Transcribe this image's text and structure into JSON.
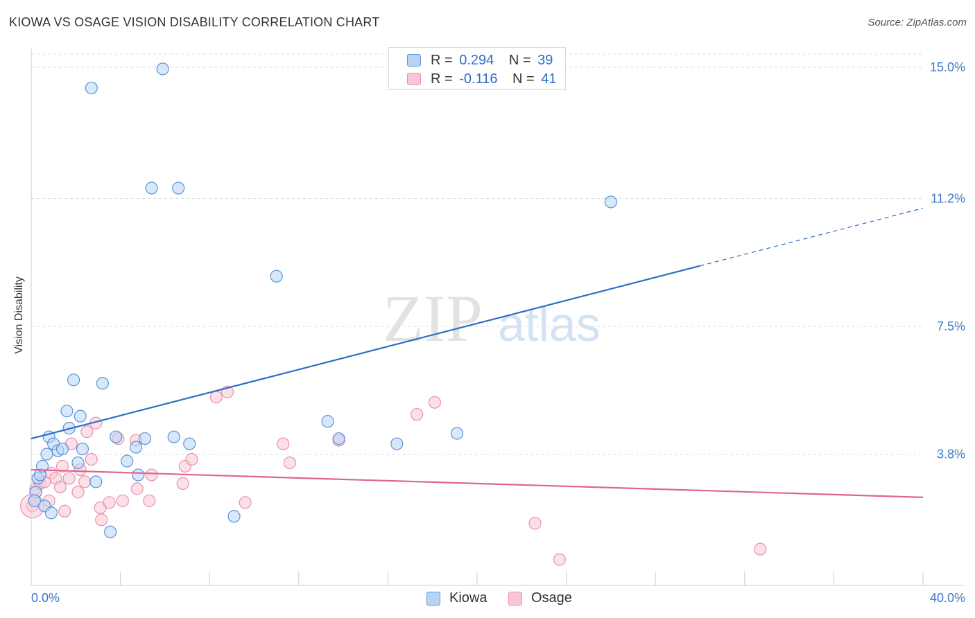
{
  "header": {
    "title": "KIOWA VS OSAGE VISION DISABILITY CORRELATION CHART",
    "source": "Source: ZipAtlas.com"
  },
  "legend": {
    "kiowa": {
      "r_label": "R =",
      "r_value": "0.294",
      "n_label": "N =",
      "n_value": "39"
    },
    "osage": {
      "r_label": "R =",
      "r_value": "-0.116",
      "n_label": "N =",
      "n_value": "41"
    }
  },
  "bottom_legend": {
    "kiowa": "Kiowa",
    "osage": "Osage"
  },
  "watermark": {
    "zip": "ZIP",
    "atlas": "atlas"
  },
  "colors": {
    "kiowa_fill": "#b8d4f5",
    "kiowa_stroke": "#5b93d6",
    "kiowa_line": "#2d6cc8",
    "osage_fill": "#f9c6d6",
    "osage_stroke": "#e891ad",
    "osage_line": "#e0648f",
    "tick_text": "#3b78c9"
  },
  "chart_data": {
    "type": "scatter",
    "title": "KIOWA VS OSAGE VISION DISABILITY CORRELATION CHART",
    "xlabel": "",
    "ylabel": "Vision Disability",
    "xlim": [
      0,
      40
    ],
    "ylim": [
      0,
      15.4
    ],
    "x_tick_labels": [
      "0.0%",
      "40.0%"
    ],
    "y_ticks": [
      3.8,
      7.5,
      11.2,
      15.0
    ],
    "y_tick_labels": [
      "3.8%",
      "7.5%",
      "11.2%",
      "15.0%"
    ],
    "grid": "horizontal dashed",
    "legend_position": "top-center",
    "series": [
      {
        "name": "Kiowa",
        "r": 0.294,
        "n": 39,
        "trend": {
          "x0": 0,
          "y0": 4.25,
          "x1": 30,
          "y1": 9.25,
          "dashed_to_x": 40,
          "dashed_to_y": 10.92
        },
        "points": [
          [
            0.2,
            2.7
          ],
          [
            0.3,
            3.1
          ],
          [
            0.4,
            3.2
          ],
          [
            0.5,
            3.45
          ],
          [
            0.6,
            2.3
          ],
          [
            0.7,
            3.8
          ],
          [
            0.8,
            4.3
          ],
          [
            0.9,
            2.1
          ],
          [
            1.0,
            4.1
          ],
          [
            1.2,
            3.9
          ],
          [
            1.4,
            3.95
          ],
          [
            1.6,
            5.05
          ],
          [
            1.7,
            4.55
          ],
          [
            1.9,
            5.95
          ],
          [
            2.1,
            3.55
          ],
          [
            2.2,
            4.9
          ],
          [
            2.3,
            3.95
          ],
          [
            2.9,
            3.0
          ],
          [
            3.2,
            5.85
          ],
          [
            3.55,
            1.55
          ],
          [
            3.8,
            4.3
          ],
          [
            4.3,
            3.6
          ],
          [
            4.7,
            4.0
          ],
          [
            4.8,
            3.2
          ],
          [
            5.1,
            4.25
          ],
          [
            5.4,
            11.5
          ],
          [
            5.9,
            14.95
          ],
          [
            6.4,
            4.3
          ],
          [
            6.6,
            11.5
          ],
          [
            7.1,
            4.1
          ],
          [
            9.1,
            2.0
          ],
          [
            2.7,
            14.4
          ],
          [
            11.0,
            8.95
          ],
          [
            13.3,
            4.75
          ],
          [
            13.8,
            4.25
          ],
          [
            16.4,
            4.1
          ],
          [
            19.1,
            4.4
          ],
          [
            26.0,
            11.1
          ],
          [
            0.15,
            2.45
          ]
        ]
      },
      {
        "name": "Osage",
        "r": -0.116,
        "n": 41,
        "trend": {
          "x0": 0,
          "y0": 3.35,
          "x1": 40,
          "y1": 2.55
        },
        "points": [
          [
            0.05,
            2.3
          ],
          [
            0.2,
            2.8
          ],
          [
            0.4,
            2.95
          ],
          [
            0.6,
            3.0
          ],
          [
            0.8,
            2.45
          ],
          [
            0.9,
            3.25
          ],
          [
            1.1,
            3.1
          ],
          [
            1.3,
            2.85
          ],
          [
            1.4,
            3.45
          ],
          [
            1.5,
            2.15
          ],
          [
            1.7,
            3.1
          ],
          [
            1.8,
            4.1
          ],
          [
            2.1,
            2.7
          ],
          [
            2.2,
            3.35
          ],
          [
            2.4,
            3.0
          ],
          [
            2.5,
            4.45
          ],
          [
            2.7,
            3.65
          ],
          [
            2.9,
            4.7
          ],
          [
            3.1,
            2.25
          ],
          [
            3.15,
            1.9
          ],
          [
            3.5,
            2.4
          ],
          [
            3.9,
            4.25
          ],
          [
            4.1,
            2.45
          ],
          [
            4.7,
            4.2
          ],
          [
            4.75,
            2.8
          ],
          [
            5.3,
            2.45
          ],
          [
            5.4,
            3.2
          ],
          [
            6.8,
            2.95
          ],
          [
            6.9,
            3.45
          ],
          [
            7.2,
            3.65
          ],
          [
            8.3,
            5.45
          ],
          [
            8.8,
            5.6
          ],
          [
            9.6,
            2.4
          ],
          [
            11.3,
            4.1
          ],
          [
            11.6,
            3.55
          ],
          [
            13.8,
            4.2
          ],
          [
            17.3,
            4.95
          ],
          [
            18.1,
            5.3
          ],
          [
            22.6,
            1.8
          ],
          [
            23.7,
            0.75
          ],
          [
            32.7,
            1.05
          ]
        ]
      }
    ]
  }
}
